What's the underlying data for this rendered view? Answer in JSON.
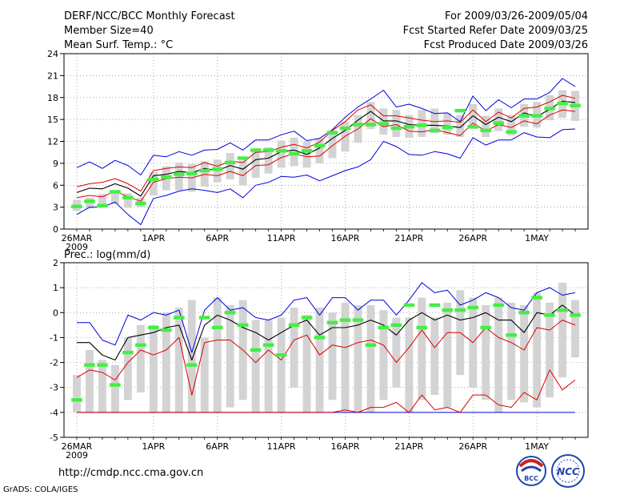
{
  "header": {
    "title": "DERF/NCC/BCC Monthly Forecast",
    "member_size": "Member Size=40",
    "variable_top": "Mean Surf. Temp.: °C",
    "period": "For 2009/03/26-2009/05/04",
    "refer_date": "Fcst Started Refer Date 2009/03/25",
    "produced_date": "Fcst Produced Date 2009/03/26"
  },
  "footer": {
    "url": "http://cmdp.ncc.cma.gov.cn",
    "grads": "GrADS: COLA/IGES",
    "logo1_text": "BCC",
    "logo2_text": "NCC"
  },
  "chart_data": [
    {
      "type": "line",
      "title": "Mean Surf. Temp.: °C",
      "ylim": [
        0,
        24
      ],
      "yticks": [
        "24",
        "21",
        "18",
        "15",
        "12",
        "9",
        "6",
        "3",
        "0"
      ],
      "ytick_values": [
        24,
        21,
        18,
        15,
        12,
        9,
        6,
        3,
        0
      ],
      "xtick_labels": [
        "26MAR",
        "1APR",
        "6APR",
        "11APR",
        "16APR",
        "21APR",
        "26APR",
        "1MAY"
      ],
      "xtick_index": [
        0,
        6,
        11,
        16,
        21,
        26,
        31,
        36
      ],
      "x_year_label": "2009",
      "days": 40,
      "colors": {
        "box": "#d3d3d3",
        "whisker": "#0000dd",
        "median": "#000000",
        "pct": "#dd0000",
        "obs": "#44ee44"
      },
      "box_low": [
        2.5,
        2.8,
        3.0,
        3.4,
        2.9,
        3.0,
        4.6,
        5.3,
        5.3,
        5.1,
        5.8,
        6.4,
        6.8,
        6.0,
        7.0,
        7.6,
        8.4,
        8.6,
        8.4,
        9.0,
        9.7,
        10.6,
        11.8,
        13.7,
        12.9,
        12.6,
        12.5,
        12.6,
        13.1,
        12.9,
        12.6,
        13.7,
        12.6,
        13.4,
        12.8,
        14.0,
        13.9,
        14.9,
        15.2,
        14.8
      ],
      "box_high": [
        4.0,
        4.3,
        4.8,
        5.3,
        4.9,
        4.3,
        7.8,
        8.6,
        9.1,
        8.9,
        9.3,
        9.5,
        10.4,
        9.4,
        10.8,
        11.2,
        12.1,
        12.5,
        12.0,
        12.4,
        13.5,
        14.7,
        15.6,
        17.4,
        16.5,
        16.3,
        15.6,
        16.3,
        16.5,
        15.9,
        15.6,
        17.1,
        15.5,
        16.5,
        15.6,
        17.1,
        17.4,
        18.3,
        19.0,
        18.9
      ],
      "whisker_low": [
        2.0,
        3.0,
        3.0,
        3.7,
        2.0,
        0.6,
        4.2,
        4.6,
        5.2,
        5.5,
        5.3,
        5.0,
        5.5,
        4.3,
        6.0,
        6.4,
        7.2,
        7.1,
        7.4,
        6.6,
        7.3,
        8.0,
        8.5,
        9.5,
        12.0,
        11.3,
        10.2,
        10.1,
        10.6,
        10.3,
        9.7,
        12.5,
        11.5,
        12.2,
        12.2,
        13.2,
        12.6,
        12.5,
        13.6,
        13.7
      ],
      "whisker_high": [
        8.4,
        9.2,
        8.3,
        9.4,
        8.7,
        7.4,
        10.1,
        9.9,
        10.6,
        10.1,
        10.8,
        10.9,
        11.8,
        10.8,
        12.2,
        12.2,
        12.9,
        13.4,
        12.1,
        12.4,
        13.6,
        15.3,
        16.7,
        17.8,
        19.0,
        16.7,
        17.1,
        16.5,
        15.8,
        15.9,
        14.7,
        18.2,
        16.2,
        17.7,
        16.6,
        17.8,
        17.8,
        18.7,
        20.6,
        19.5
      ],
      "pct_low": [
        4.3,
        4.6,
        4.4,
        5.2,
        4.4,
        3.8,
        6.4,
        6.9,
        7.1,
        7.0,
        7.5,
        7.3,
        7.9,
        7.3,
        8.7,
        8.8,
        9.8,
        10.3,
        9.9,
        10.0,
        11.4,
        12.7,
        13.7,
        15.1,
        14.0,
        14.3,
        13.4,
        13.3,
        13.6,
        13.2,
        12.8,
        14.5,
        13.4,
        14.3,
        13.9,
        14.8,
        14.4,
        15.6,
        16.3,
        16.1
      ],
      "median": [
        5.0,
        5.6,
        5.5,
        6.2,
        5.6,
        4.5,
        7.3,
        7.5,
        7.9,
        7.7,
        8.3,
        8.0,
        8.7,
        8.2,
        9.5,
        9.7,
        10.6,
        10.8,
        10.2,
        11.1,
        12.4,
        13.5,
        14.9,
        16.1,
        14.8,
        14.8,
        14.3,
        14.2,
        14.2,
        14.1,
        13.9,
        15.5,
        14.3,
        15.3,
        14.7,
        15.9,
        15.4,
        16.4,
        17.5,
        17.3
      ],
      "pct_high": [
        5.8,
        6.2,
        6.4,
        6.9,
        6.2,
        5.2,
        8.0,
        8.3,
        8.5,
        8.4,
        9.1,
        8.6,
        9.3,
        9.1,
        10.5,
        10.6,
        11.2,
        11.6,
        11.1,
        11.9,
        13.5,
        14.7,
        16.3,
        17.0,
        15.5,
        15.5,
        15.2,
        14.9,
        14.7,
        14.8,
        14.6,
        16.3,
        14.7,
        16.0,
        15.2,
        16.5,
        16.7,
        17.4,
        18.3,
        17.9
      ],
      "obs": [
        3.1,
        3.8,
        3.2,
        5.1,
        4.3,
        3.5,
        6.8,
        7.1,
        7.5,
        7.6,
        8.0,
        8.2,
        9.1,
        9.7,
        10.8,
        10.8,
        10.7,
        10.3,
        10.7,
        11.4,
        13.2,
        13.8,
        14.3,
        14.3,
        14.4,
        13.8,
        14.0,
        14.2,
        13.5,
        13.9,
        16.2,
        14.0,
        13.5,
        14.5,
        13.3,
        15.5,
        15.5,
        16.5,
        17.2,
        16.9
      ]
    },
    {
      "type": "line",
      "title": "Prec.: log(mm/d)",
      "ylim": [
        -5,
        2
      ],
      "yticks": [
        "2",
        "1",
        "0",
        "-1",
        "-2",
        "-3",
        "-4",
        "-5"
      ],
      "ytick_values": [
        2,
        1,
        0,
        -1,
        -2,
        -3,
        -4,
        -5
      ],
      "xtick_labels": [
        "26MAR",
        "1APR",
        "6APR",
        "11APR",
        "16APR",
        "21APR",
        "26APR",
        "1MAY"
      ],
      "xtick_index": [
        0,
        6,
        11,
        16,
        21,
        26,
        31,
        36
      ],
      "x_year_label": "2009",
      "days": 40,
      "colors": {
        "box": "#d3d3d3",
        "whisker": "#0000dd",
        "median": "#000000",
        "pct": "#dd0000",
        "obs": "#44ee44"
      },
      "box_low": [
        -4.0,
        -4.0,
        -4.0,
        -4.0,
        -3.5,
        -3.2,
        -4.0,
        -4.0,
        -4.0,
        -4.0,
        -4.0,
        -4.0,
        -3.8,
        -3.5,
        -4.0,
        -4.0,
        -4.0,
        -3.0,
        -4.0,
        -4.0,
        -3.5,
        -4.0,
        -4.0,
        -4.0,
        -3.5,
        -3.0,
        -4.0,
        -3.5,
        -3.3,
        -3.8,
        -2.5,
        -3.0,
        -3.5,
        -4.0,
        -3.5,
        -3.6,
        -3.8,
        -3.4,
        -2.6,
        -1.8
      ],
      "box_high": [
        -2.5,
        -1.5,
        -1.9,
        -2.1,
        -1.0,
        -0.5,
        -0.5,
        0.0,
        0.2,
        0.5,
        -1.0,
        0.6,
        0.3,
        0.5,
        -0.3,
        -0.3,
        -0.2,
        0.2,
        -0.1,
        0.2,
        0.0,
        0.4,
        0.3,
        0.3,
        0.1,
        -0.2,
        -0.2,
        0.6,
        -0.2,
        0.4,
        0.9,
        0.6,
        0.3,
        0.6,
        0.4,
        0.3,
        0.8,
        0.4,
        1.2,
        0.5
      ],
      "whisker_low": [
        -4.0,
        -4.0,
        -4.0,
        -4.0,
        -4.0,
        -4.0,
        -4.0,
        -4.0,
        -4.0,
        -4.0,
        -4.0,
        -4.0,
        -4.0,
        -4.0,
        -4.0,
        -4.0,
        -4.0,
        -4.0,
        -4.0,
        -4.0,
        -4.0,
        -4.0,
        -4.0,
        -4.0,
        -4.0,
        -4.0,
        -4.0,
        -4.0,
        -4.0,
        -4.0,
        -4.0,
        -4.0,
        -4.0,
        -4.0,
        -4.0,
        -4.0,
        -4.0,
        -4.0,
        -4.0,
        -4.0
      ],
      "whisker_high": [
        -0.4,
        -0.4,
        -1.1,
        -1.3,
        -0.1,
        -0.3,
        0.0,
        -0.1,
        0.1,
        -1.6,
        0.1,
        0.6,
        0.1,
        0.2,
        -0.2,
        -0.3,
        -0.1,
        0.5,
        0.6,
        -0.1,
        0.6,
        0.6,
        0.1,
        0.5,
        0.5,
        -0.1,
        0.5,
        1.2,
        0.8,
        0.9,
        0.3,
        0.5,
        0.8,
        0.6,
        0.2,
        0.1,
        0.8,
        1.0,
        0.7,
        0.8
      ],
      "pct_low": [
        -4.0,
        -4.0,
        -4.0,
        -4.0,
        -4.0,
        -4.0,
        -4.0,
        -4.0,
        -4.0,
        -4.0,
        -4.0,
        -4.0,
        -4.0,
        -4.0,
        -4.0,
        -4.0,
        -4.0,
        -4.0,
        -4.0,
        -4.0,
        -4.0,
        -3.9,
        -4.0,
        -3.8,
        -3.8,
        -3.6,
        -4.0,
        -3.3,
        -3.9,
        -3.8,
        -4.0,
        -3.3,
        -3.3,
        -3.7,
        -3.8,
        -3.2,
        -3.5,
        -2.3,
        -3.1,
        -2.7
      ],
      "median": [
        -1.2,
        -1.2,
        -1.7,
        -1.9,
        -1.0,
        -0.9,
        -0.8,
        -0.6,
        -0.5,
        -1.9,
        -0.5,
        -0.1,
        -0.3,
        -0.6,
        -0.8,
        -1.1,
        -0.8,
        -0.5,
        -0.3,
        -0.9,
        -0.6,
        -0.6,
        -0.5,
        -0.3,
        -0.5,
        -0.9,
        -0.3,
        0.0,
        -0.3,
        -0.1,
        -0.3,
        -0.2,
        0.0,
        -0.3,
        -0.3,
        -0.8,
        0.0,
        -0.1,
        0.3,
        -0.1
      ],
      "pct_high": [
        -2.6,
        -2.3,
        -2.4,
        -2.7,
        -2.0,
        -1.5,
        -1.7,
        -1.5,
        -1.0,
        -3.3,
        -1.2,
        -1.1,
        -1.1,
        -1.5,
        -2.0,
        -1.5,
        -1.9,
        -1.1,
        -0.9,
        -1.7,
        -1.3,
        -1.4,
        -1.2,
        -1.1,
        -1.3,
        -2.0,
        -1.4,
        -0.7,
        -1.4,
        -0.8,
        -0.8,
        -1.2,
        -0.6,
        -1.0,
        -1.2,
        -1.5,
        -0.6,
        -0.7,
        -0.3,
        -0.5
      ],
      "obs": [
        -3.5,
        -2.1,
        -2.1,
        -2.9,
        -1.6,
        -1.3,
        -0.6,
        -0.7,
        -0.2,
        -2.1,
        -0.2,
        -0.6,
        0.0,
        -0.5,
        -1.5,
        -1.3,
        -1.7,
        -0.5,
        -0.2,
        -1.0,
        -0.4,
        -0.3,
        -0.3,
        -1.3,
        -0.6,
        -0.5,
        0.3,
        -0.6,
        0.3,
        0.1,
        0.1,
        0.2,
        -0.6,
        0.3,
        -0.9,
        0.0,
        0.6,
        -0.1,
        0.1,
        -0.1
      ]
    }
  ]
}
